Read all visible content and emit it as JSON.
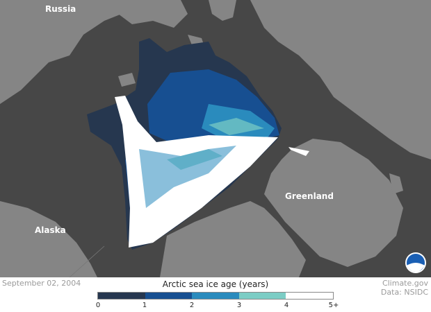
{
  "map": {
    "labels": {
      "russia": "Russia",
      "alaska": "Alaska",
      "greenland": "Greenland"
    },
    "colors": {
      "ocean": "#474747",
      "land": "#858585"
    }
  },
  "footer": {
    "date": "September 02, 2004",
    "credit_line1": "Climate.gov",
    "credit_line2": "Data: NSIDC",
    "logo": "NOAA"
  },
  "legend": {
    "title": "Arctic sea ice age (years)",
    "ticks": [
      "0",
      "1",
      "2",
      "3",
      "4",
      "5+"
    ],
    "colors": [
      "#26374f",
      "#174f91",
      "#2a8bbd",
      "#7ccdc5",
      "#ffffff"
    ]
  }
}
